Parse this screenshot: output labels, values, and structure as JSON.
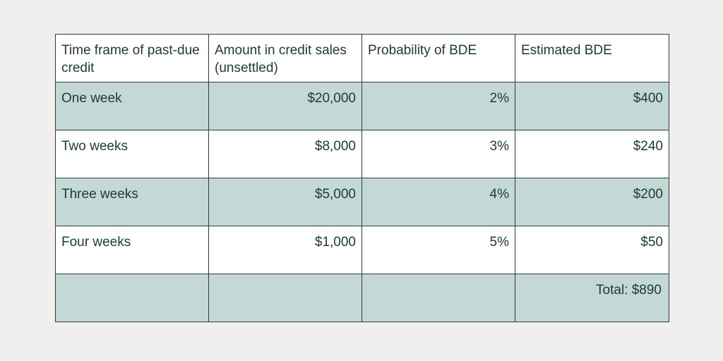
{
  "table": {
    "headers": [
      "Time frame of past-due credit",
      "Amount in credit sales (unsettled)",
      "Probability of BDE",
      "Estimated BDE"
    ],
    "rows": [
      [
        "One week",
        "$20,000",
        "2%",
        "$400"
      ],
      [
        "Two weeks",
        "$8,000",
        "3%",
        "$240"
      ],
      [
        "Three weeks",
        "$5,000",
        "4%",
        "$200"
      ],
      [
        "Four weeks",
        "$1,000",
        "5%",
        "$50"
      ]
    ],
    "total": "Total: $890"
  },
  "colors": {
    "page_background": "#f1efed",
    "shaded_row": "#c4d8d5",
    "white_row": "#ffffff",
    "text": "#1f3a36",
    "border": "#2c3e3b"
  }
}
